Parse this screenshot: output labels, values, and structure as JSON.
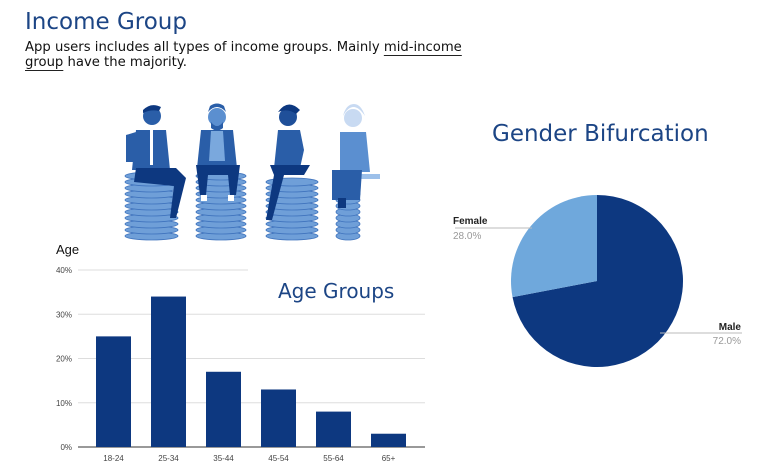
{
  "header": {
    "title": "Income Group",
    "description_pre": "App users includes all types of income groups. Mainly ",
    "description_highlight": "mid-income group",
    "description_post": " have the majority."
  },
  "illustration": {
    "icon": "people-sitting-on-coin-stacks"
  },
  "colors": {
    "bar": "#0d3880",
    "male": "#0d3880",
    "female": "#6fa8dc",
    "title": "#1c4585"
  },
  "chart_data": [
    {
      "type": "bar",
      "title": "Age Groups",
      "ylabel": "Age",
      "xlabel": "",
      "categories": [
        "18-24",
        "25-34",
        "35-44",
        "45-54",
        "55-64",
        "65+"
      ],
      "values": [
        25,
        34,
        17,
        13,
        8,
        3
      ],
      "unit": "%",
      "ylim": [
        0,
        40
      ],
      "yticks": [
        "0%",
        "10%",
        "20%",
        "30%",
        "40%"
      ],
      "grid": true
    },
    {
      "type": "pie",
      "title": "Gender Bifurcation",
      "slices": [
        {
          "label": "Male",
          "value": 72.0,
          "display": "72.0%"
        },
        {
          "label": "Female",
          "value": 28.0,
          "display": "28.0%"
        }
      ]
    }
  ]
}
